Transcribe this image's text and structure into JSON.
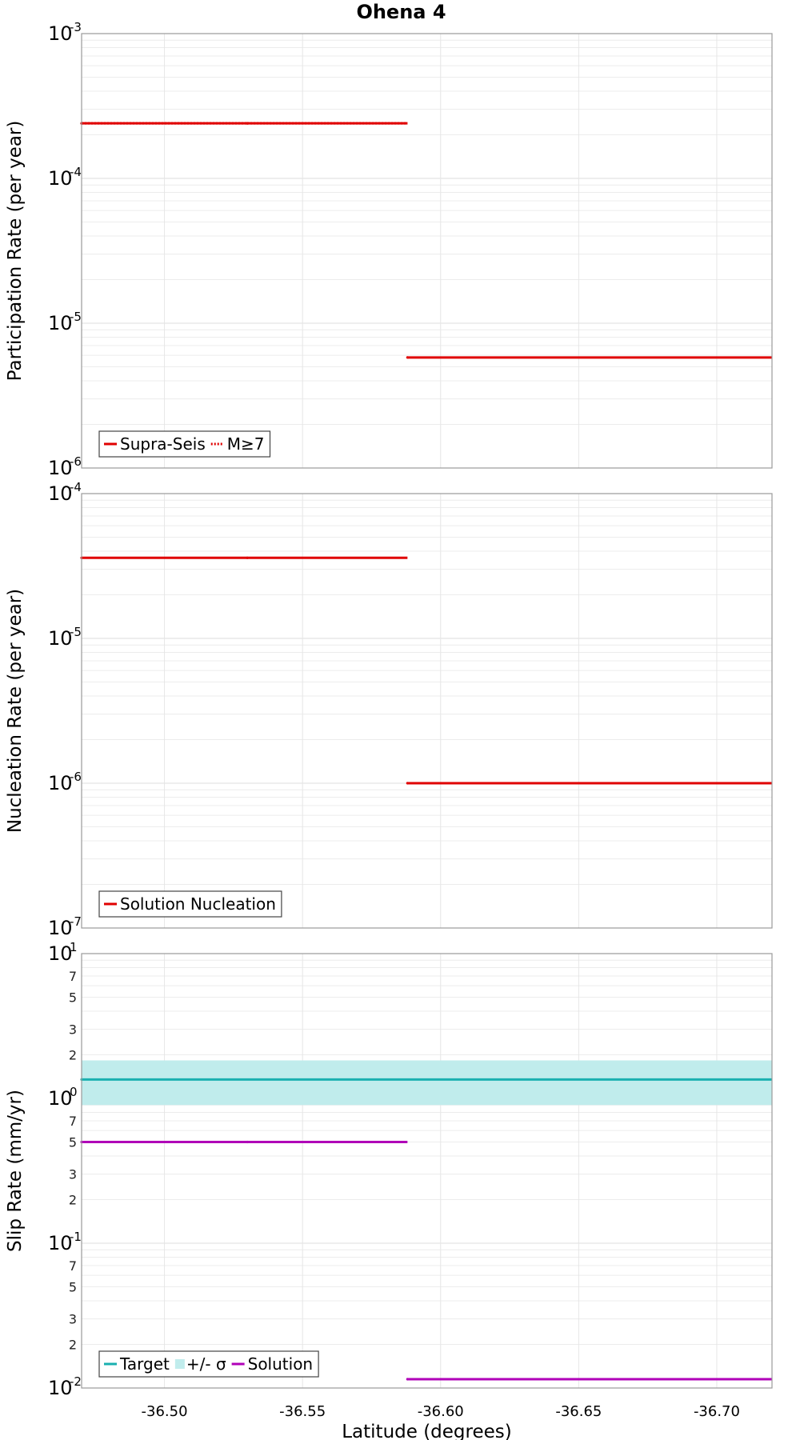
{
  "chart_data": [
    {
      "type": "line",
      "title": "Ohena 4",
      "ylabel": "Participation Rate (per year)",
      "xlabel": "",
      "yscale": "log",
      "ylim": [
        1e-06,
        0.001
      ],
      "xlim": [
        -36.47,
        -36.72
      ],
      "xticks": [
        -36.5,
        -36.55,
        -36.6,
        -36.65,
        -36.7
      ],
      "xtick_labels": [
        "-36.50",
        "-36.55",
        "-36.60",
        "-36.65",
        "-36.70"
      ],
      "ytick_base": "10",
      "yticks": [
        {
          "value": 0.001,
          "exp": "-3"
        },
        {
          "value": 0.0001,
          "exp": "-4"
        },
        {
          "value": 1e-05,
          "exp": "-5"
        },
        {
          "value": 1e-06,
          "exp": "-6"
        }
      ],
      "minor_tick_labels": [],
      "legend": {
        "position": "bottom-left",
        "entries": [
          {
            "label": "Supra-Seis",
            "color": "#e00000",
            "style": "solid"
          },
          {
            "label": "M≥7",
            "color": "#e00000",
            "style": "dotted"
          }
        ]
      },
      "series": [
        {
          "name": "Supra-Seis",
          "color": "#e00000",
          "style": "solid",
          "segments": [
            {
              "x": [
                -36.47,
                -36.53
              ],
              "y": 0.00024
            },
            {
              "x": [
                -36.53,
                -36.588
              ],
              "y": 0.00024
            },
            {
              "x": [
                -36.588,
                -36.72
              ],
              "y": 5.8e-06
            }
          ]
        },
        {
          "name": "M≥7",
          "color": "#e00000",
          "style": "dotted",
          "segments": [
            {
              "x": [
                -36.47,
                -36.53
              ],
              "y": 0.00024
            },
            {
              "x": [
                -36.53,
                -36.588
              ],
              "y": 0.00024
            }
          ]
        }
      ]
    },
    {
      "type": "line",
      "title": "",
      "ylabel": "Nucleation Rate (per year)",
      "xlabel": "",
      "yscale": "log",
      "ylim": [
        1e-07,
        0.0001
      ],
      "xlim": [
        -36.47,
        -36.72
      ],
      "xticks": [
        -36.5,
        -36.55,
        -36.6,
        -36.65,
        -36.7
      ],
      "xtick_labels": [
        "-36.50",
        "-36.55",
        "-36.60",
        "-36.65",
        "-36.70"
      ],
      "ytick_base": "10",
      "yticks": [
        {
          "value": 0.0001,
          "exp": "-4"
        },
        {
          "value": 1e-05,
          "exp": "-5"
        },
        {
          "value": 1e-06,
          "exp": "-6"
        },
        {
          "value": 1e-07,
          "exp": "-7"
        }
      ],
      "minor_tick_labels": [],
      "legend": {
        "position": "bottom-left",
        "entries": [
          {
            "label": "Solution Nucleation",
            "color": "#e00000",
            "style": "solid"
          }
        ]
      },
      "series": [
        {
          "name": "Solution Nucleation",
          "color": "#e00000",
          "style": "solid",
          "segments": [
            {
              "x": [
                -36.47,
                -36.53
              ],
              "y": 3.6e-05
            },
            {
              "x": [
                -36.53,
                -36.588
              ],
              "y": 3.6e-05
            },
            {
              "x": [
                -36.588,
                -36.72
              ],
              "y": 1e-06
            }
          ]
        }
      ]
    },
    {
      "type": "line",
      "title": "",
      "ylabel": "Slip Rate (mm/yr)",
      "xlabel": "Latitude (degrees)",
      "yscale": "log",
      "ylim": [
        0.01,
        10
      ],
      "xlim": [
        -36.47,
        -36.72
      ],
      "xticks": [
        -36.5,
        -36.55,
        -36.6,
        -36.65,
        -36.7
      ],
      "xtick_labels": [
        "-36.50",
        "-36.55",
        "-36.60",
        "-36.65",
        "-36.70"
      ],
      "ytick_base": "10",
      "yticks": [
        {
          "value": 10,
          "exp": "1"
        },
        {
          "value": 1,
          "exp": "0"
        },
        {
          "value": 0.1,
          "exp": "-1"
        },
        {
          "value": 0.01,
          "exp": "-2"
        }
      ],
      "minor_tick_labels": [
        {
          "value": 7,
          "label": "7"
        },
        {
          "value": 5,
          "label": "5"
        },
        {
          "value": 3,
          "label": "3"
        },
        {
          "value": 2,
          "label": "2"
        },
        {
          "value": 0.7,
          "label": "7"
        },
        {
          "value": 0.5,
          "label": "5"
        },
        {
          "value": 0.3,
          "label": "3"
        },
        {
          "value": 0.2,
          "label": "2"
        },
        {
          "value": 0.07,
          "label": "7"
        },
        {
          "value": 0.05,
          "label": "5"
        },
        {
          "value": 0.03,
          "label": "3"
        },
        {
          "value": 0.02,
          "label": "2"
        }
      ],
      "legend": {
        "position": "bottom-left",
        "entries": [
          {
            "label": "Target",
            "color": "#1ab0b0",
            "style": "solid"
          },
          {
            "label": "+/- σ",
            "color": "#c0ecec",
            "style": "band"
          },
          {
            "label": "Solution",
            "color": "#b000b8",
            "style": "solid"
          }
        ]
      },
      "band": {
        "name": "+/- σ",
        "color": "#c0ecec",
        "lower": 0.9,
        "upper": 1.83
      },
      "series": [
        {
          "name": "Target",
          "color": "#1ab0b0",
          "style": "solid",
          "segments": [
            {
              "x": [
                -36.47,
                -36.72
              ],
              "y": 1.35
            }
          ]
        },
        {
          "name": "Solution",
          "color": "#b000b8",
          "style": "solid",
          "segments": [
            {
              "x": [
                -36.47,
                -36.53
              ],
              "y": 0.5
            },
            {
              "x": [
                -36.53,
                -36.588
              ],
              "y": 0.5
            },
            {
              "x": [
                -36.588,
                -36.72
              ],
              "y": 0.0115
            }
          ]
        }
      ]
    }
  ]
}
